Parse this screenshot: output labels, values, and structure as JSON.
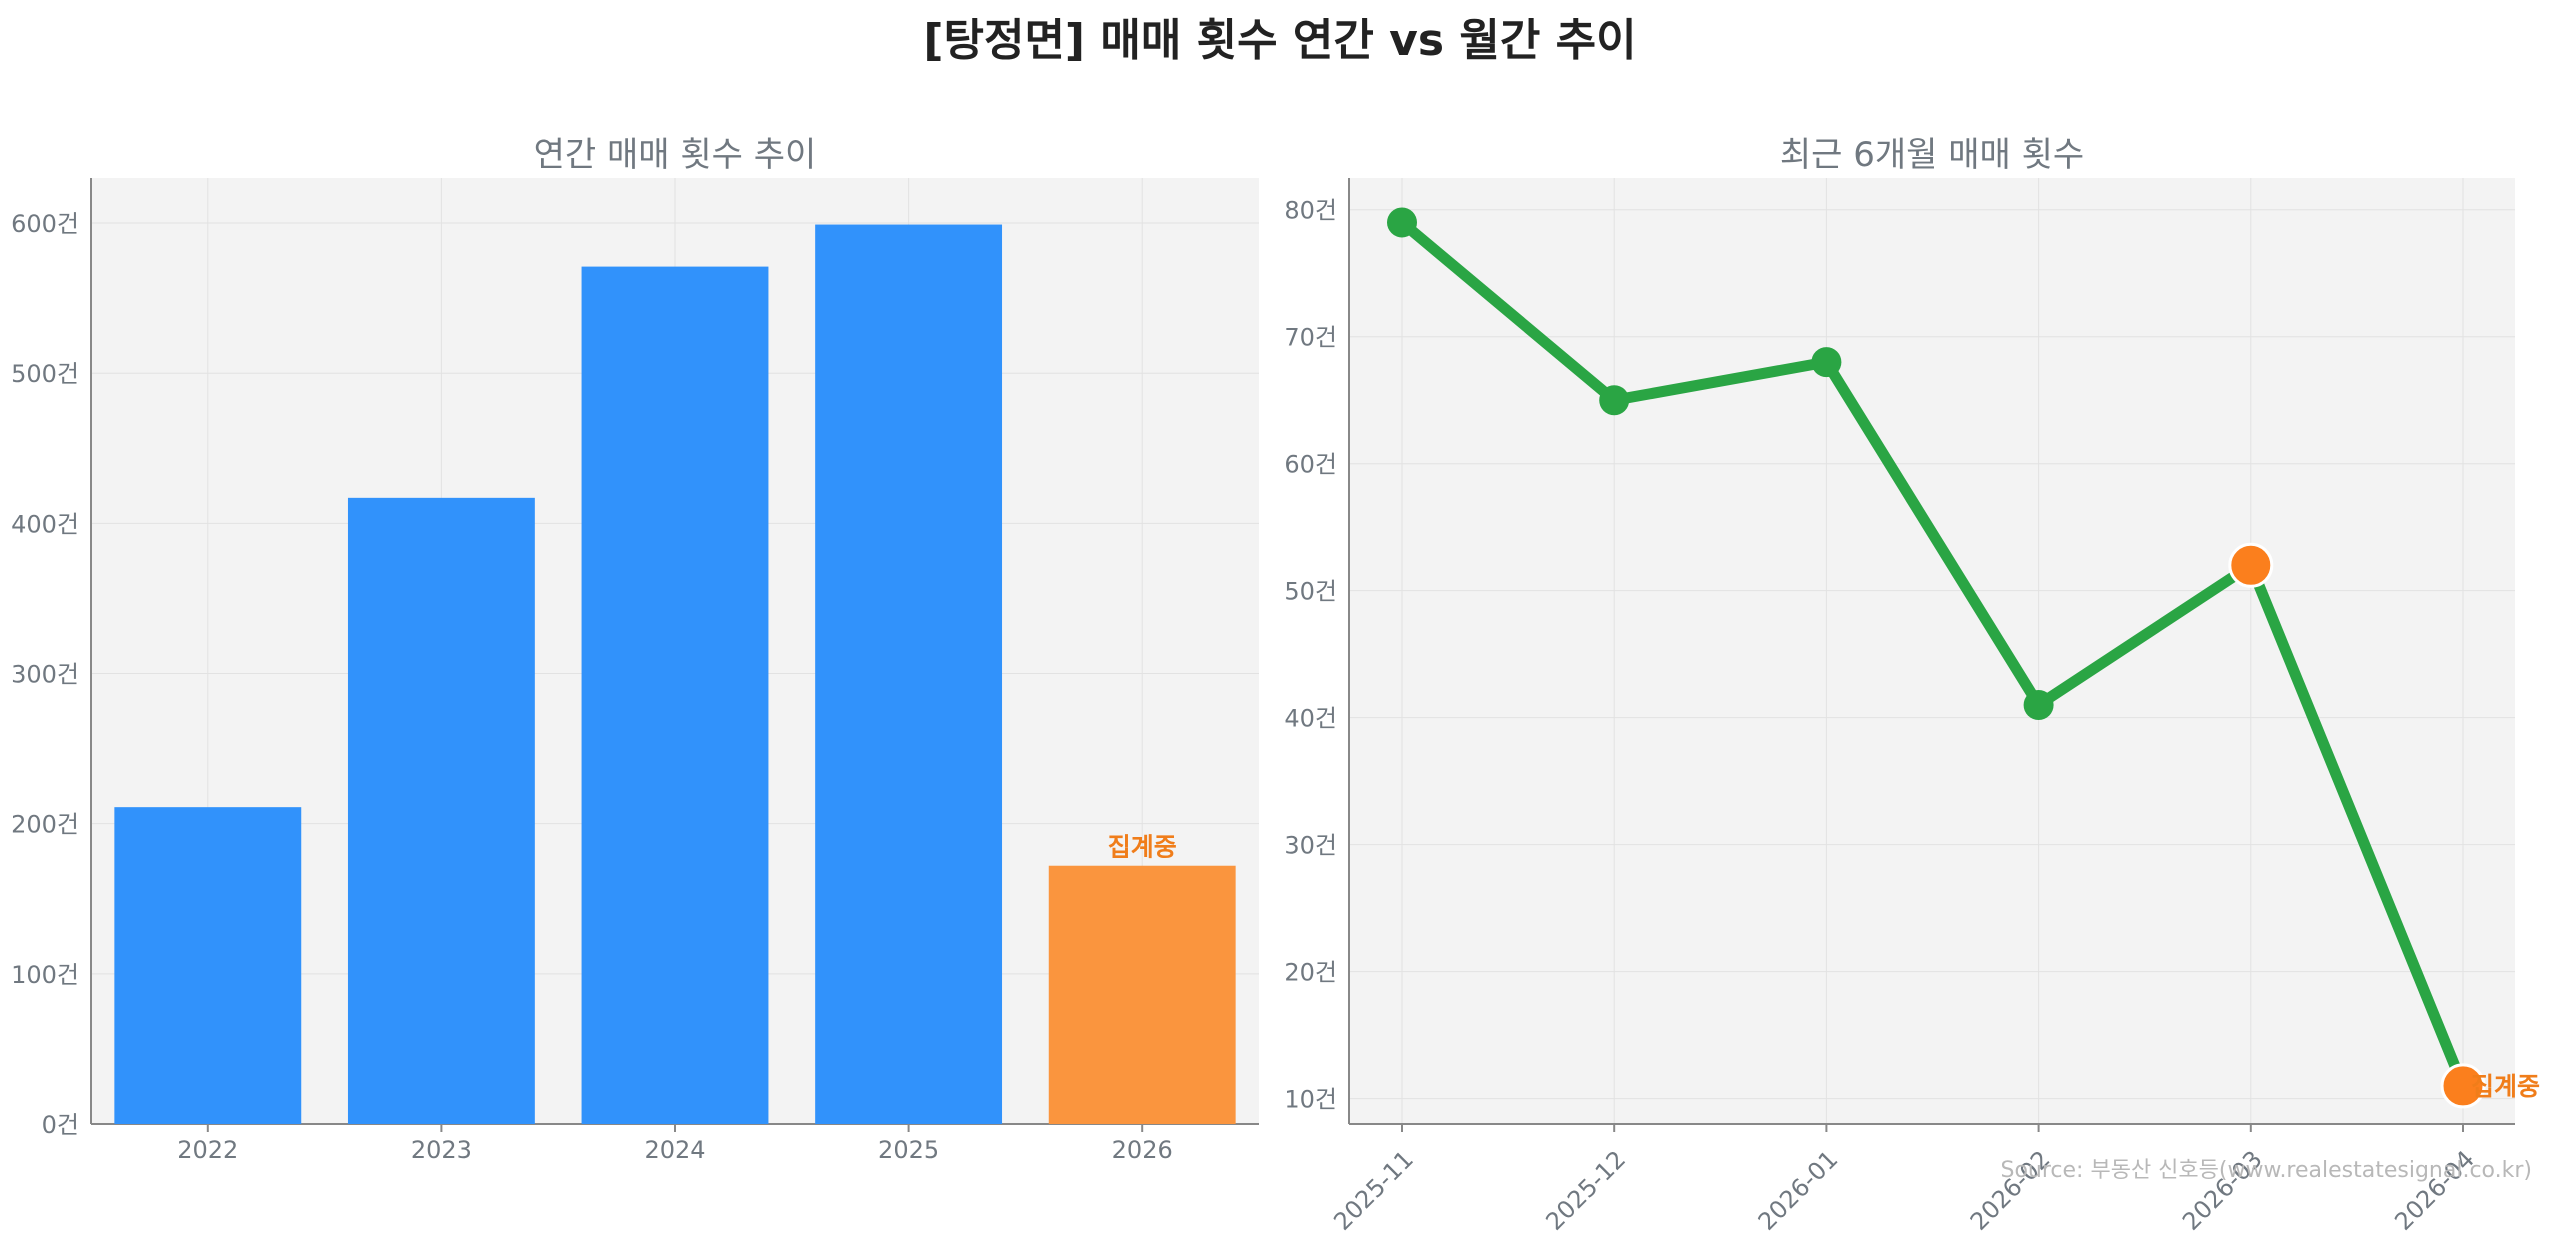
{
  "title": "[탕정면] 매매 횟수 연간 vs 월간 추이",
  "source": "Source: 부동산 신호등(www.realestatesignal.co.kr)",
  "colors": {
    "bar": "#3192fb",
    "bar_partial": "#fa953e",
    "line": "#2aa544",
    "highlight": "#fb7f1d",
    "partial_label": "#f07d1a"
  },
  "chart_data": [
    {
      "type": "bar",
      "title": "연간 매매 횟수 추이",
      "categories": [
        "2022",
        "2023",
        "2024",
        "2025",
        "2026"
      ],
      "values": [
        211,
        417,
        571,
        599,
        172
      ],
      "ylim": [
        0,
        630
      ],
      "yticks": [
        0,
        100,
        200,
        300,
        400,
        500,
        600
      ],
      "tick_suffix": "건",
      "partial_index": 4,
      "partial_label": "집계중",
      "grid": true
    },
    {
      "type": "line",
      "title": "최근 6개월 매매 횟수",
      "categories": [
        "2025-11",
        "2025-12",
        "2026-01",
        "2026-02",
        "2026-03",
        "2026-04"
      ],
      "values": [
        79,
        65,
        68,
        41,
        52,
        11
      ],
      "ylim": [
        8,
        82.5
      ],
      "yticks": [
        10,
        20,
        30,
        40,
        50,
        60,
        70,
        80
      ],
      "tick_suffix": "건",
      "highlight_indices": [
        4,
        5
      ],
      "partial_label": "집계중",
      "grid": true
    }
  ]
}
